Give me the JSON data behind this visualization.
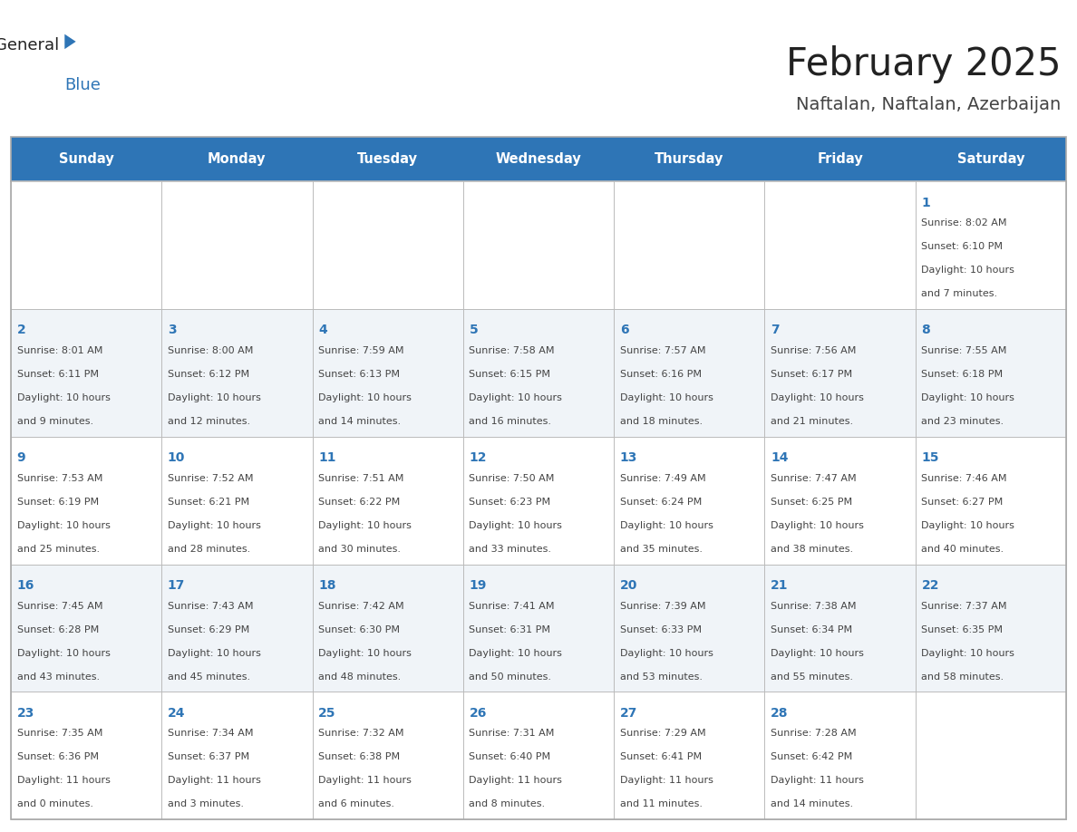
{
  "title": "February 2025",
  "subtitle": "Naftalan, Naftalan, Azerbaijan",
  "header_color": "#2E75B6",
  "header_text_color": "#FFFFFF",
  "weekdays": [
    "Sunday",
    "Monday",
    "Tuesday",
    "Wednesday",
    "Thursday",
    "Friday",
    "Saturday"
  ],
  "days": [
    {
      "day": 1,
      "col": 6,
      "row": 0,
      "sunrise": "8:02 AM",
      "sunset": "6:10 PM",
      "daylight_hours": 10,
      "daylight_minutes": 7
    },
    {
      "day": 2,
      "col": 0,
      "row": 1,
      "sunrise": "8:01 AM",
      "sunset": "6:11 PM",
      "daylight_hours": 10,
      "daylight_minutes": 9
    },
    {
      "day": 3,
      "col": 1,
      "row": 1,
      "sunrise": "8:00 AM",
      "sunset": "6:12 PM",
      "daylight_hours": 10,
      "daylight_minutes": 12
    },
    {
      "day": 4,
      "col": 2,
      "row": 1,
      "sunrise": "7:59 AM",
      "sunset": "6:13 PM",
      "daylight_hours": 10,
      "daylight_minutes": 14
    },
    {
      "day": 5,
      "col": 3,
      "row": 1,
      "sunrise": "7:58 AM",
      "sunset": "6:15 PM",
      "daylight_hours": 10,
      "daylight_minutes": 16
    },
    {
      "day": 6,
      "col": 4,
      "row": 1,
      "sunrise": "7:57 AM",
      "sunset": "6:16 PM",
      "daylight_hours": 10,
      "daylight_minutes": 18
    },
    {
      "day": 7,
      "col": 5,
      "row": 1,
      "sunrise": "7:56 AM",
      "sunset": "6:17 PM",
      "daylight_hours": 10,
      "daylight_minutes": 21
    },
    {
      "day": 8,
      "col": 6,
      "row": 1,
      "sunrise": "7:55 AM",
      "sunset": "6:18 PM",
      "daylight_hours": 10,
      "daylight_minutes": 23
    },
    {
      "day": 9,
      "col": 0,
      "row": 2,
      "sunrise": "7:53 AM",
      "sunset": "6:19 PM",
      "daylight_hours": 10,
      "daylight_minutes": 25
    },
    {
      "day": 10,
      "col": 1,
      "row": 2,
      "sunrise": "7:52 AM",
      "sunset": "6:21 PM",
      "daylight_hours": 10,
      "daylight_minutes": 28
    },
    {
      "day": 11,
      "col": 2,
      "row": 2,
      "sunrise": "7:51 AM",
      "sunset": "6:22 PM",
      "daylight_hours": 10,
      "daylight_minutes": 30
    },
    {
      "day": 12,
      "col": 3,
      "row": 2,
      "sunrise": "7:50 AM",
      "sunset": "6:23 PM",
      "daylight_hours": 10,
      "daylight_minutes": 33
    },
    {
      "day": 13,
      "col": 4,
      "row": 2,
      "sunrise": "7:49 AM",
      "sunset": "6:24 PM",
      "daylight_hours": 10,
      "daylight_minutes": 35
    },
    {
      "day": 14,
      "col": 5,
      "row": 2,
      "sunrise": "7:47 AM",
      "sunset": "6:25 PM",
      "daylight_hours": 10,
      "daylight_minutes": 38
    },
    {
      "day": 15,
      "col": 6,
      "row": 2,
      "sunrise": "7:46 AM",
      "sunset": "6:27 PM",
      "daylight_hours": 10,
      "daylight_minutes": 40
    },
    {
      "day": 16,
      "col": 0,
      "row": 3,
      "sunrise": "7:45 AM",
      "sunset": "6:28 PM",
      "daylight_hours": 10,
      "daylight_minutes": 43
    },
    {
      "day": 17,
      "col": 1,
      "row": 3,
      "sunrise": "7:43 AM",
      "sunset": "6:29 PM",
      "daylight_hours": 10,
      "daylight_minutes": 45
    },
    {
      "day": 18,
      "col": 2,
      "row": 3,
      "sunrise": "7:42 AM",
      "sunset": "6:30 PM",
      "daylight_hours": 10,
      "daylight_minutes": 48
    },
    {
      "day": 19,
      "col": 3,
      "row": 3,
      "sunrise": "7:41 AM",
      "sunset": "6:31 PM",
      "daylight_hours": 10,
      "daylight_minutes": 50
    },
    {
      "day": 20,
      "col": 4,
      "row": 3,
      "sunrise": "7:39 AM",
      "sunset": "6:33 PM",
      "daylight_hours": 10,
      "daylight_minutes": 53
    },
    {
      "day": 21,
      "col": 5,
      "row": 3,
      "sunrise": "7:38 AM",
      "sunset": "6:34 PM",
      "daylight_hours": 10,
      "daylight_minutes": 55
    },
    {
      "day": 22,
      "col": 6,
      "row": 3,
      "sunrise": "7:37 AM",
      "sunset": "6:35 PM",
      "daylight_hours": 10,
      "daylight_minutes": 58
    },
    {
      "day": 23,
      "col": 0,
      "row": 4,
      "sunrise": "7:35 AM",
      "sunset": "6:36 PM",
      "daylight_hours": 11,
      "daylight_minutes": 0
    },
    {
      "day": 24,
      "col": 1,
      "row": 4,
      "sunrise": "7:34 AM",
      "sunset": "6:37 PM",
      "daylight_hours": 11,
      "daylight_minutes": 3
    },
    {
      "day": 25,
      "col": 2,
      "row": 4,
      "sunrise": "7:32 AM",
      "sunset": "6:38 PM",
      "daylight_hours": 11,
      "daylight_minutes": 6
    },
    {
      "day": 26,
      "col": 3,
      "row": 4,
      "sunrise": "7:31 AM",
      "sunset": "6:40 PM",
      "daylight_hours": 11,
      "daylight_minutes": 8
    },
    {
      "day": 27,
      "col": 4,
      "row": 4,
      "sunrise": "7:29 AM",
      "sunset": "6:41 PM",
      "daylight_hours": 11,
      "daylight_minutes": 11
    },
    {
      "day": 28,
      "col": 5,
      "row": 4,
      "sunrise": "7:28 AM",
      "sunset": "6:42 PM",
      "daylight_hours": 11,
      "daylight_minutes": 14
    }
  ],
  "num_rows": 5,
  "num_cols": 7,
  "bg_color": "#FFFFFF",
  "border_color": "#AAAAAA",
  "day_num_color": "#2E75B6",
  "text_color": "#444444",
  "grid_line_color": "#BBBBBB",
  "logo_general_color": "#222222",
  "logo_blue_color": "#2E75B6",
  "title_color": "#222222",
  "subtitle_color": "#444444"
}
